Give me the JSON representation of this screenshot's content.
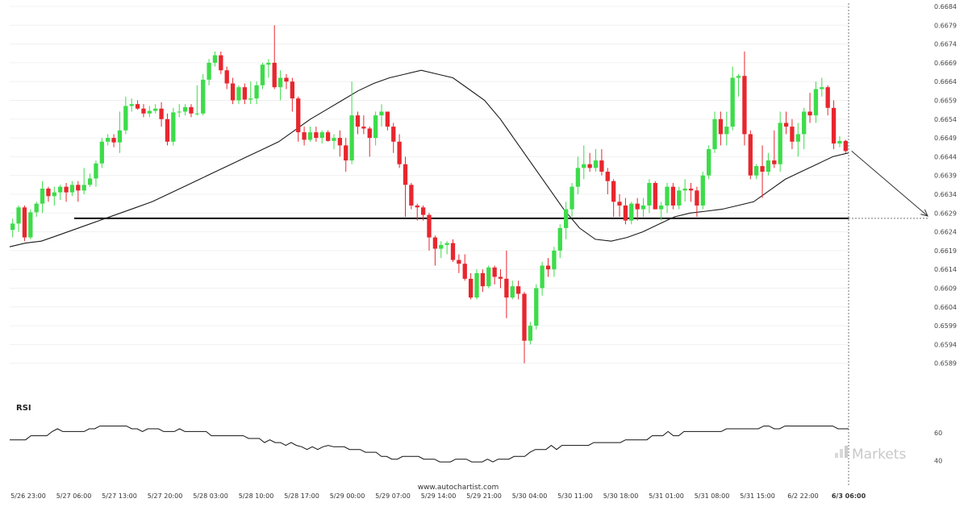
{
  "chart_data": {
    "type": "candlestick",
    "price_axis": {
      "ticks": [
        "0.6684",
        "0.6679",
        "0.6674",
        "0.6669",
        "0.6664",
        "0.6659",
        "0.6654",
        "0.6649",
        "0.6644",
        "0.6639",
        "0.6634",
        "0.6629",
        "0.6624",
        "0.6619",
        "0.6614",
        "0.6609",
        "0.6604",
        "0.6599",
        "0.6594",
        "0.6589"
      ],
      "range": [
        0.6584,
        0.6684
      ]
    },
    "time_axis": {
      "ticks": [
        "5/26 23:00",
        "5/27 06:00",
        "5/27 13:00",
        "5/27 20:00",
        "5/28 03:00",
        "5/28 10:00",
        "5/28 17:00",
        "5/29 00:00",
        "5/29 07:00",
        "5/29 14:00",
        "5/29 21:00",
        "5/30 04:00",
        "5/30 11:00",
        "5/30 18:00",
        "5/31 01:00",
        "5/31 08:00",
        "5/31 15:00",
        "6/2 22:00",
        "6/3 06:00"
      ]
    },
    "candles": [
      {
        "o": 0.66245,
        "h": 0.66275,
        "l": 0.66225,
        "c": 0.66262
      },
      {
        "o": 0.66262,
        "h": 0.6631,
        "l": 0.6624,
        "c": 0.66305
      },
      {
        "o": 0.66305,
        "h": 0.6631,
        "l": 0.66215,
        "c": 0.66225
      },
      {
        "o": 0.66225,
        "h": 0.663,
        "l": 0.6622,
        "c": 0.66292
      },
      {
        "o": 0.66292,
        "h": 0.6632,
        "l": 0.6628,
        "c": 0.66315
      },
      {
        "o": 0.66315,
        "h": 0.66375,
        "l": 0.6629,
        "c": 0.66355
      },
      {
        "o": 0.66355,
        "h": 0.6636,
        "l": 0.6632,
        "c": 0.66335
      },
      {
        "o": 0.66335,
        "h": 0.6636,
        "l": 0.6631,
        "c": 0.66345
      },
      {
        "o": 0.66345,
        "h": 0.66365,
        "l": 0.66325,
        "c": 0.6636
      },
      {
        "o": 0.6636,
        "h": 0.6637,
        "l": 0.6632,
        "c": 0.66345
      },
      {
        "o": 0.66345,
        "h": 0.66375,
        "l": 0.66335,
        "c": 0.66365
      },
      {
        "o": 0.66365,
        "h": 0.66375,
        "l": 0.6632,
        "c": 0.6635
      },
      {
        "o": 0.6635,
        "h": 0.6641,
        "l": 0.6634,
        "c": 0.66365
      },
      {
        "o": 0.66365,
        "h": 0.66395,
        "l": 0.6636,
        "c": 0.66382
      },
      {
        "o": 0.66382,
        "h": 0.6643,
        "l": 0.6636,
        "c": 0.66422
      },
      {
        "o": 0.66422,
        "h": 0.6649,
        "l": 0.6641,
        "c": 0.6648
      },
      {
        "o": 0.6648,
        "h": 0.665,
        "l": 0.6647,
        "c": 0.6649
      },
      {
        "o": 0.6649,
        "h": 0.665,
        "l": 0.66465,
        "c": 0.66478
      },
      {
        "o": 0.66478,
        "h": 0.6656,
        "l": 0.6645,
        "c": 0.6651
      },
      {
        "o": 0.6651,
        "h": 0.666,
        "l": 0.665,
        "c": 0.66575
      },
      {
        "o": 0.66575,
        "h": 0.66595,
        "l": 0.6656,
        "c": 0.6658
      },
      {
        "o": 0.6658,
        "h": 0.6659,
        "l": 0.66565,
        "c": 0.66568
      },
      {
        "o": 0.66568,
        "h": 0.6658,
        "l": 0.66545,
        "c": 0.66555
      },
      {
        "o": 0.66555,
        "h": 0.66575,
        "l": 0.66545,
        "c": 0.66562
      },
      {
        "o": 0.66562,
        "h": 0.6658,
        "l": 0.66555,
        "c": 0.66568
      },
      {
        "o": 0.66568,
        "h": 0.66585,
        "l": 0.6652,
        "c": 0.6654
      },
      {
        "o": 0.6654,
        "h": 0.66555,
        "l": 0.6647,
        "c": 0.6648
      },
      {
        "o": 0.6648,
        "h": 0.6657,
        "l": 0.6647,
        "c": 0.66558
      },
      {
        "o": 0.66558,
        "h": 0.6658,
        "l": 0.66545,
        "c": 0.6656
      },
      {
        "o": 0.6656,
        "h": 0.6658,
        "l": 0.6655,
        "c": 0.66572
      },
      {
        "o": 0.66572,
        "h": 0.6658,
        "l": 0.66545,
        "c": 0.66555
      },
      {
        "o": 0.66555,
        "h": 0.6663,
        "l": 0.6655,
        "c": 0.66555
      },
      {
        "o": 0.66555,
        "h": 0.6666,
        "l": 0.6655,
        "c": 0.66645
      },
      {
        "o": 0.66645,
        "h": 0.667,
        "l": 0.6663,
        "c": 0.6669
      },
      {
        "o": 0.6669,
        "h": 0.6672,
        "l": 0.6668,
        "c": 0.6671
      },
      {
        "o": 0.6671,
        "h": 0.6672,
        "l": 0.6666,
        "c": 0.6667
      },
      {
        "o": 0.6667,
        "h": 0.6668,
        "l": 0.6662,
        "c": 0.66635
      },
      {
        "o": 0.66635,
        "h": 0.6665,
        "l": 0.6658,
        "c": 0.6659
      },
      {
        "o": 0.6659,
        "h": 0.6663,
        "l": 0.6658,
        "c": 0.66625
      },
      {
        "o": 0.66625,
        "h": 0.66635,
        "l": 0.6658,
        "c": 0.66592
      },
      {
        "o": 0.66592,
        "h": 0.6664,
        "l": 0.6658,
        "c": 0.66595
      },
      {
        "o": 0.66595,
        "h": 0.6664,
        "l": 0.6658,
        "c": 0.6663
      },
      {
        "o": 0.6663,
        "h": 0.6669,
        "l": 0.6662,
        "c": 0.66685
      },
      {
        "o": 0.66685,
        "h": 0.667,
        "l": 0.6665,
        "c": 0.6669
      },
      {
        "o": 0.6669,
        "h": 0.6679,
        "l": 0.6662,
        "c": 0.66625
      },
      {
        "o": 0.66625,
        "h": 0.6667,
        "l": 0.6659,
        "c": 0.6665
      },
      {
        "o": 0.6665,
        "h": 0.6666,
        "l": 0.6662,
        "c": 0.6664
      },
      {
        "o": 0.6664,
        "h": 0.6665,
        "l": 0.6656,
        "c": 0.66595
      },
      {
        "o": 0.66595,
        "h": 0.666,
        "l": 0.6648,
        "c": 0.66505
      },
      {
        "o": 0.66505,
        "h": 0.6652,
        "l": 0.6647,
        "c": 0.66485
      },
      {
        "o": 0.66485,
        "h": 0.6652,
        "l": 0.6648,
        "c": 0.66505
      },
      {
        "o": 0.66505,
        "h": 0.6652,
        "l": 0.6648,
        "c": 0.6649
      },
      {
        "o": 0.6649,
        "h": 0.6651,
        "l": 0.66475,
        "c": 0.66505
      },
      {
        "o": 0.66505,
        "h": 0.6651,
        "l": 0.6648,
        "c": 0.66482
      },
      {
        "o": 0.66482,
        "h": 0.665,
        "l": 0.6646,
        "c": 0.6649
      },
      {
        "o": 0.6649,
        "h": 0.6651,
        "l": 0.6644,
        "c": 0.6647
      },
      {
        "o": 0.6647,
        "h": 0.6649,
        "l": 0.664,
        "c": 0.6643
      },
      {
        "o": 0.6643,
        "h": 0.6664,
        "l": 0.6642,
        "c": 0.6655
      },
      {
        "o": 0.6655,
        "h": 0.6656,
        "l": 0.665,
        "c": 0.6652
      },
      {
        "o": 0.6652,
        "h": 0.6655,
        "l": 0.665,
        "c": 0.66515
      },
      {
        "o": 0.66515,
        "h": 0.6652,
        "l": 0.6644,
        "c": 0.6649
      },
      {
        "o": 0.6649,
        "h": 0.6656,
        "l": 0.6647,
        "c": 0.6655
      },
      {
        "o": 0.6655,
        "h": 0.6658,
        "l": 0.6652,
        "c": 0.6656
      },
      {
        "o": 0.6656,
        "h": 0.6656,
        "l": 0.6651,
        "c": 0.6652
      },
      {
        "o": 0.6652,
        "h": 0.6653,
        "l": 0.6645,
        "c": 0.6648
      },
      {
        "o": 0.6648,
        "h": 0.665,
        "l": 0.6641,
        "c": 0.6642
      },
      {
        "o": 0.6642,
        "h": 0.6644,
        "l": 0.6628,
        "c": 0.66365
      },
      {
        "o": 0.66365,
        "h": 0.6637,
        "l": 0.663,
        "c": 0.6631
      },
      {
        "o": 0.6631,
        "h": 0.66315,
        "l": 0.6627,
        "c": 0.66305
      },
      {
        "o": 0.66305,
        "h": 0.6631,
        "l": 0.6627,
        "c": 0.66285
      },
      {
        "o": 0.66285,
        "h": 0.6629,
        "l": 0.6619,
        "c": 0.66225
      },
      {
        "o": 0.66225,
        "h": 0.6623,
        "l": 0.6615,
        "c": 0.66195
      },
      {
        "o": 0.66195,
        "h": 0.66215,
        "l": 0.6617,
        "c": 0.66205
      },
      {
        "o": 0.66205,
        "h": 0.66215,
        "l": 0.6618,
        "c": 0.6621
      },
      {
        "o": 0.6621,
        "h": 0.6622,
        "l": 0.6616,
        "c": 0.66165
      },
      {
        "o": 0.66165,
        "h": 0.6618,
        "l": 0.6613,
        "c": 0.66155
      },
      {
        "o": 0.66155,
        "h": 0.6618,
        "l": 0.6611,
        "c": 0.66115
      },
      {
        "o": 0.66115,
        "h": 0.6613,
        "l": 0.6606,
        "c": 0.66065
      },
      {
        "o": 0.66065,
        "h": 0.6614,
        "l": 0.6606,
        "c": 0.6613
      },
      {
        "o": 0.6613,
        "h": 0.6614,
        "l": 0.6608,
        "c": 0.66095
      },
      {
        "o": 0.66095,
        "h": 0.6615,
        "l": 0.6609,
        "c": 0.66145
      },
      {
        "o": 0.66145,
        "h": 0.6615,
        "l": 0.661,
        "c": 0.6612
      },
      {
        "o": 0.6612,
        "h": 0.6614,
        "l": 0.6609,
        "c": 0.66115
      },
      {
        "o": 0.66115,
        "h": 0.6619,
        "l": 0.6601,
        "c": 0.66065
      },
      {
        "o": 0.66065,
        "h": 0.6611,
        "l": 0.6606,
        "c": 0.66095
      },
      {
        "o": 0.66095,
        "h": 0.6611,
        "l": 0.6606,
        "c": 0.66075
      },
      {
        "o": 0.66075,
        "h": 0.6608,
        "l": 0.6589,
        "c": 0.6595
      },
      {
        "o": 0.6595,
        "h": 0.66,
        "l": 0.6594,
        "c": 0.6599
      },
      {
        "o": 0.6599,
        "h": 0.661,
        "l": 0.6598,
        "c": 0.6609
      },
      {
        "o": 0.6609,
        "h": 0.6616,
        "l": 0.6607,
        "c": 0.6615
      },
      {
        "o": 0.6615,
        "h": 0.6617,
        "l": 0.6612,
        "c": 0.6614
      },
      {
        "o": 0.6614,
        "h": 0.662,
        "l": 0.6612,
        "c": 0.6619
      },
      {
        "o": 0.6619,
        "h": 0.6626,
        "l": 0.6617,
        "c": 0.6625
      },
      {
        "o": 0.6625,
        "h": 0.6632,
        "l": 0.6622,
        "c": 0.663
      },
      {
        "o": 0.663,
        "h": 0.6637,
        "l": 0.6628,
        "c": 0.6636
      },
      {
        "o": 0.6636,
        "h": 0.6644,
        "l": 0.6634,
        "c": 0.6641
      },
      {
        "o": 0.6641,
        "h": 0.6647,
        "l": 0.6638,
        "c": 0.6642
      },
      {
        "o": 0.6642,
        "h": 0.6645,
        "l": 0.664,
        "c": 0.6641
      },
      {
        "o": 0.6641,
        "h": 0.6646,
        "l": 0.664,
        "c": 0.6643
      },
      {
        "o": 0.6643,
        "h": 0.6646,
        "l": 0.6639,
        "c": 0.664
      },
      {
        "o": 0.664,
        "h": 0.6641,
        "l": 0.6634,
        "c": 0.66375
      },
      {
        "o": 0.66375,
        "h": 0.6638,
        "l": 0.6628,
        "c": 0.6632
      },
      {
        "o": 0.6632,
        "h": 0.6634,
        "l": 0.6628,
        "c": 0.6631
      },
      {
        "o": 0.6631,
        "h": 0.6633,
        "l": 0.6626,
        "c": 0.6627
      },
      {
        "o": 0.6627,
        "h": 0.6632,
        "l": 0.6626,
        "c": 0.66315
      },
      {
        "o": 0.66315,
        "h": 0.6633,
        "l": 0.6627,
        "c": 0.663
      },
      {
        "o": 0.663,
        "h": 0.6633,
        "l": 0.6628,
        "c": 0.6631
      },
      {
        "o": 0.6631,
        "h": 0.6638,
        "l": 0.6629,
        "c": 0.6637
      },
      {
        "o": 0.6637,
        "h": 0.66375,
        "l": 0.663,
        "c": 0.663
      },
      {
        "o": 0.663,
        "h": 0.6632,
        "l": 0.6627,
        "c": 0.6631
      },
      {
        "o": 0.6631,
        "h": 0.6637,
        "l": 0.6629,
        "c": 0.6636
      },
      {
        "o": 0.6636,
        "h": 0.6637,
        "l": 0.663,
        "c": 0.6631
      },
      {
        "o": 0.6631,
        "h": 0.6636,
        "l": 0.663,
        "c": 0.6635
      },
      {
        "o": 0.6635,
        "h": 0.6638,
        "l": 0.6632,
        "c": 0.66355
      },
      {
        "o": 0.66355,
        "h": 0.6637,
        "l": 0.6632,
        "c": 0.6635
      },
      {
        "o": 0.6635,
        "h": 0.6636,
        "l": 0.6628,
        "c": 0.6631
      },
      {
        "o": 0.6631,
        "h": 0.664,
        "l": 0.663,
        "c": 0.6639
      },
      {
        "o": 0.6639,
        "h": 0.6647,
        "l": 0.6638,
        "c": 0.6646
      },
      {
        "o": 0.6646,
        "h": 0.6656,
        "l": 0.6645,
        "c": 0.6654
      },
      {
        "o": 0.6654,
        "h": 0.6656,
        "l": 0.6647,
        "c": 0.665
      },
      {
        "o": 0.665,
        "h": 0.6656,
        "l": 0.6647,
        "c": 0.6652
      },
      {
        "o": 0.6652,
        "h": 0.6668,
        "l": 0.6651,
        "c": 0.6665
      },
      {
        "o": 0.6665,
        "h": 0.6666,
        "l": 0.666,
        "c": 0.66655
      },
      {
        "o": 0.66655,
        "h": 0.6672,
        "l": 0.6647,
        "c": 0.665
      },
      {
        "o": 0.665,
        "h": 0.6651,
        "l": 0.6638,
        "c": 0.6639
      },
      {
        "o": 0.6639,
        "h": 0.6642,
        "l": 0.6638,
        "c": 0.66415
      },
      {
        "o": 0.66415,
        "h": 0.6647,
        "l": 0.6633,
        "c": 0.664
      },
      {
        "o": 0.664,
        "h": 0.6645,
        "l": 0.6639,
        "c": 0.6643
      },
      {
        "o": 0.6643,
        "h": 0.6651,
        "l": 0.6641,
        "c": 0.6642
      },
      {
        "o": 0.6642,
        "h": 0.6656,
        "l": 0.664,
        "c": 0.6653
      },
      {
        "o": 0.6653,
        "h": 0.6656,
        "l": 0.665,
        "c": 0.6652
      },
      {
        "o": 0.6652,
        "h": 0.6654,
        "l": 0.6646,
        "c": 0.6648
      },
      {
        "o": 0.6648,
        "h": 0.6653,
        "l": 0.6644,
        "c": 0.665
      },
      {
        "o": 0.665,
        "h": 0.6657,
        "l": 0.6646,
        "c": 0.6656
      },
      {
        "o": 0.6656,
        "h": 0.6661,
        "l": 0.6653,
        "c": 0.6655
      },
      {
        "o": 0.6655,
        "h": 0.6664,
        "l": 0.6653,
        "c": 0.6662
      },
      {
        "o": 0.6662,
        "h": 0.6665,
        "l": 0.666,
        "c": 0.66625
      },
      {
        "o": 0.66625,
        "h": 0.6663,
        "l": 0.6655,
        "c": 0.6657
      },
      {
        "o": 0.6657,
        "h": 0.6659,
        "l": 0.6646,
        "c": 0.66475
      },
      {
        "o": 0.66475,
        "h": 0.66495,
        "l": 0.66465,
        "c": 0.66482
      },
      {
        "o": 0.66482,
        "h": 0.66485,
        "l": 0.6645,
        "c": 0.66455
      }
    ],
    "moving_average": {
      "values": [
        0.662,
        0.6621,
        0.66215,
        0.6623,
        0.66245,
        0.6626,
        0.66275,
        0.6629,
        0.66305,
        0.6632,
        0.6634,
        0.6636,
        0.6638,
        0.664,
        0.6642,
        0.6644,
        0.6646,
        0.6648,
        0.6651,
        0.6654,
        0.66565,
        0.6659,
        0.66615,
        0.66635,
        0.6665,
        0.6666,
        0.6667,
        0.6666,
        0.6665,
        0.6662,
        0.6659,
        0.6654,
        0.6648,
        0.6642,
        0.6636,
        0.663,
        0.6625,
        0.6622,
        0.66215,
        0.66225,
        0.6624,
        0.6626,
        0.6628,
        0.6629,
        0.66295,
        0.663,
        0.6631,
        0.6632,
        0.6635,
        0.6638,
        0.664,
        0.6642,
        0.6644,
        0.6645
      ],
      "color": "#1a1a1a"
    },
    "support_level": {
      "value": 0.66276,
      "color": "#111111"
    },
    "projection": {
      "start_index": 141,
      "start_value": 0.66455,
      "end_value": 0.66282,
      "color": "#333333"
    },
    "current_time_marker": "6/3 06:00",
    "rsi": {
      "label": "RSI",
      "ticks": [
        "60",
        "40"
      ],
      "range": [
        35,
        70
      ],
      "values": [
        55,
        55,
        55,
        55,
        58,
        58,
        58,
        58,
        61,
        63,
        61,
        61,
        61,
        61,
        61,
        63,
        63,
        65,
        65,
        65,
        65,
        65,
        65,
        63,
        63,
        61,
        63,
        63,
        63,
        61,
        61,
        61,
        63,
        61,
        61,
        61,
        61,
        61,
        58,
        58,
        58,
        58,
        58,
        58,
        58,
        56,
        56,
        56,
        53,
        55,
        53,
        53,
        51,
        53,
        51,
        50,
        48,
        50,
        48,
        50,
        51,
        50,
        50,
        50,
        48,
        48,
        48,
        46,
        46,
        46,
        43,
        43,
        41,
        41,
        43,
        43,
        43,
        43,
        41,
        41,
        41,
        39,
        39,
        39,
        41,
        41,
        41,
        39,
        39,
        39,
        41,
        39,
        41,
        41,
        41,
        43,
        43,
        43,
        46,
        48,
        48,
        48,
        51,
        48,
        51,
        51,
        51,
        51,
        51,
        51,
        53,
        53,
        53,
        53,
        53,
        53,
        55,
        55,
        55,
        55,
        55,
        58,
        58,
        58,
        61,
        58,
        58,
        61,
        61,
        61,
        61,
        61,
        61,
        61,
        61,
        63,
        63,
        63,
        63,
        63,
        63,
        63,
        65,
        65,
        63,
        63,
        65,
        65,
        65,
        65,
        65,
        65,
        65,
        65,
        65,
        65,
        63,
        63,
        63
      ]
    },
    "colors": {
      "up": "#3ddc4a",
      "down": "#e8262e",
      "grid": "#dddddd",
      "axis_text": "#444444"
    }
  },
  "footer": {
    "source": "www.autochartist.com"
  },
  "watermark": {
    "brand": "Markets"
  }
}
